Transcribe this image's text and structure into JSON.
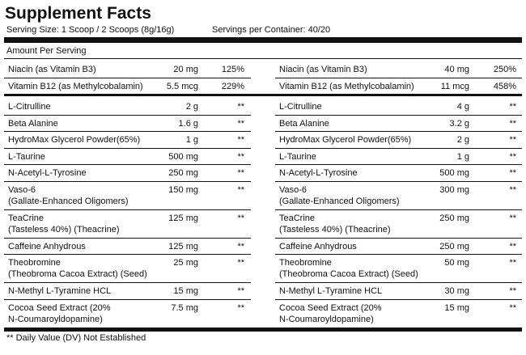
{
  "header": {
    "title": "Supplement Facts",
    "serving_size": "Serving Size: 1 Scoop / 2 Scoops (8g/16g)",
    "servings_per_container": "Servings per Container: 40/20"
  },
  "amount_per_serving": "Amount Per Serving",
  "sections": [
    {
      "rows": [
        {
          "left": {
            "name": [
              "Niacin (as Vitamin B3)"
            ],
            "amount": "20 mg",
            "dv": "125%"
          },
          "right": {
            "name": [
              "Niacin (as Vitamin B3)"
            ],
            "amount": "40 mg",
            "dv": "250%"
          }
        },
        {
          "left": {
            "name": [
              "Vitamin B12 (as Methylcobalamin)"
            ],
            "amount": "5.5 mcg",
            "dv": "229%"
          },
          "right": {
            "name": [
              "Vitamin B12 (as Methylcobalamin)"
            ],
            "amount": "11 mcg",
            "dv": "458%"
          }
        }
      ]
    },
    {
      "rows": [
        {
          "left": {
            "name": [
              "L-Citrulline"
            ],
            "amount": "2 g",
            "dv": "**"
          },
          "right": {
            "name": [
              "L-Citrulline"
            ],
            "amount": "4 g",
            "dv": "**"
          }
        },
        {
          "left": {
            "name": [
              "Beta Alanine"
            ],
            "amount": "1.6 g",
            "dv": "**"
          },
          "right": {
            "name": [
              "Beta Alanine"
            ],
            "amount": "3.2 g",
            "dv": "**"
          }
        },
        {
          "left": {
            "name": [
              "HydroMax Glycerol Powder(65%)"
            ],
            "amount": "1 g",
            "dv": "**"
          },
          "right": {
            "name": [
              "HydroMax Glycerol Powder(65%)"
            ],
            "amount": "2 g",
            "dv": "**"
          }
        },
        {
          "left": {
            "name": [
              "L-Taurine"
            ],
            "amount": "500 mg",
            "dv": "**"
          },
          "right": {
            "name": [
              "L-Taurine"
            ],
            "amount": "1 g",
            "dv": "**"
          }
        },
        {
          "left": {
            "name": [
              "N-Acetyl-L-Tyrosine"
            ],
            "amount": "250 mg",
            "dv": "**"
          },
          "right": {
            "name": [
              "N-Acetyl-L-Tyrosine"
            ],
            "amount": "500 mg",
            "dv": "**"
          }
        },
        {
          "left": {
            "name": [
              "Vaso-6",
              "(Gallate-Enhanced Oligomers)"
            ],
            "amount": "150 mg",
            "dv": "**"
          },
          "right": {
            "name": [
              "Vaso-6",
              "(Gallate-Enhanced Oligomers)"
            ],
            "amount": "300 mg",
            "dv": "**"
          }
        },
        {
          "left": {
            "name": [
              "TeaCrine",
              "(Tasteless 40%) (Theacrine)"
            ],
            "amount": "125 mg",
            "dv": "**"
          },
          "right": {
            "name": [
              "TeaCrine",
              "(Tasteless 40%) (Theacrine)"
            ],
            "amount": "250 mg",
            "dv": "**"
          }
        },
        {
          "left": {
            "name": [
              "Caffeine Anhydrous"
            ],
            "amount": "125 mg",
            "dv": "**"
          },
          "right": {
            "name": [
              "Caffeine Anhydrous"
            ],
            "amount": "250 mg",
            "dv": "**"
          }
        },
        {
          "left": {
            "name": [
              "Theobromine",
              "(Theobroma Cacoa Extract) (Seed)"
            ],
            "amount": "25 mg",
            "dv": "**"
          },
          "right": {
            "name": [
              "Theobromine",
              "(Theobroma Cacoa Extract) (Seed)"
            ],
            "amount": "50 mg",
            "dv": "**"
          }
        },
        {
          "left": {
            "name": [
              "N-Methyl L-Tyramine HCL"
            ],
            "amount": "15 mg",
            "dv": "**"
          },
          "right": {
            "name": [
              "N-Methyl L-Tyramine HCL"
            ],
            "amount": "30 mg",
            "dv": "**"
          }
        },
        {
          "left": {
            "name": [
              "Cocoa Seed Extract (20%",
              "N-Coumaroyldopamine)"
            ],
            "amount": "7.5 mg",
            "dv": "**"
          },
          "right": {
            "name": [
              "Cocoa Seed Extract (20%",
              "N-Coumaroyldopamine)"
            ],
            "amount": "15 mg",
            "dv": "**"
          }
        }
      ]
    }
  ],
  "footnote": "** Daily Value (DV) Not Established"
}
